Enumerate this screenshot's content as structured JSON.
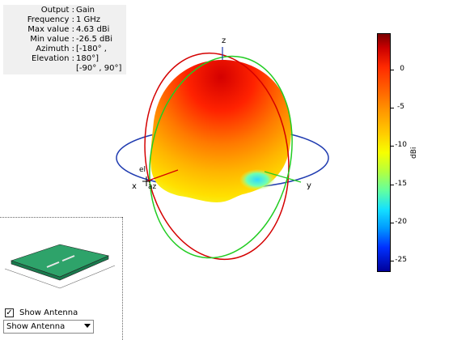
{
  "info": {
    "rows": [
      {
        "key": "Output :",
        "val": "Gain"
      },
      {
        "key": "Frequency :",
        "val": "1 GHz"
      },
      {
        "key": "Max value :",
        "val": "4.63 dBi"
      },
      {
        "key": "Min value :",
        "val": "-26.5 dBi"
      },
      {
        "key": "Azimuth :",
        "val": "[-180° ,"
      },
      {
        "key": "Elevation :",
        "val": "180°]"
      },
      {
        "key": "",
        "val": "[-90° , 90°]"
      }
    ]
  },
  "colorbar": {
    "unit": "dBi",
    "ticks": [
      "0",
      "-5",
      "-10",
      "-15",
      "-20",
      "-25"
    ]
  },
  "axes": {
    "x": "x",
    "y": "y",
    "z": "z",
    "el": "el",
    "az": "az"
  },
  "controls": {
    "show_antenna_checkbox": "Show Antenna",
    "show_antenna_checked": true,
    "dropdown_value": "Show Antenna"
  }
}
